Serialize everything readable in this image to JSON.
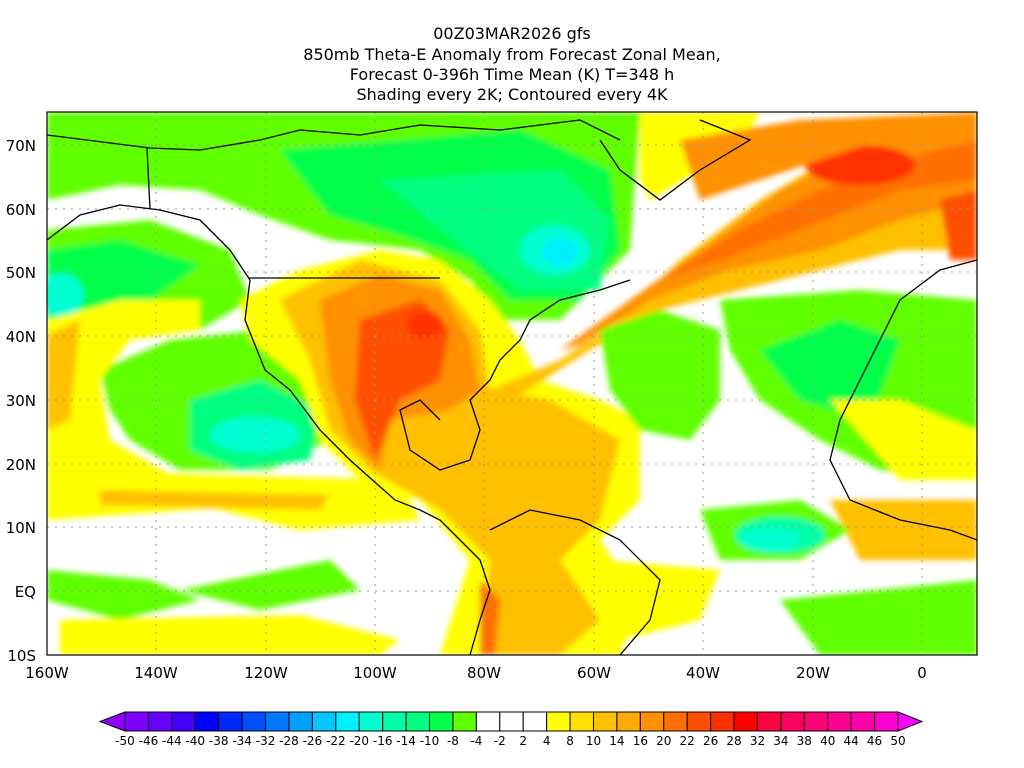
{
  "title": {
    "line1": "00Z03MAR2026 gfs",
    "line2": "850mb Theta-E Anomaly from Forecast Zonal Mean,",
    "line3": "Forecast 0-396h Time Mean (K) T=348 h",
    "line4": "Shading every 2K; Contoured every 4K"
  },
  "map": {
    "lon_labels": [
      "160W",
      "140W",
      "120W",
      "100W",
      "80W",
      "60W",
      "40W",
      "20W",
      "0"
    ],
    "lat_labels": [
      "70N",
      "60N",
      "50N",
      "40N",
      "30N",
      "20N",
      "10N",
      "EQ",
      "10S"
    ]
  },
  "colorbar": {
    "labels": [
      "-50",
      "-46",
      "-44",
      "-40",
      "-38",
      "-34",
      "-32",
      "-28",
      "-26",
      "-22",
      "-20",
      "-16",
      "-14",
      "-10",
      "-8",
      "-4",
      "-2",
      "2",
      "4",
      "8",
      "10",
      "14",
      "16",
      "20",
      "22",
      "26",
      "28",
      "32",
      "34",
      "38",
      "40",
      "44",
      "46",
      "50"
    ],
    "low_triangle_color": "#9000ff",
    "high_triangle_color": "#ff00ff",
    "colors": [
      "#8000ff",
      "#6600ff",
      "#4400ff",
      "#0000ff",
      "#0028ff",
      "#0050ff",
      "#0078ff",
      "#00a0ff",
      "#00c8ff",
      "#00f0ff",
      "#00ffd0",
      "#00ffa8",
      "#00ff80",
      "#00ff48",
      "#60ff00",
      "#ffffff",
      "#ffffff",
      "#ffffff",
      "#ffff00",
      "#ffe000",
      "#ffc000",
      "#ffaa00",
      "#ff9000",
      "#ff7000",
      "#ff5000",
      "#ff3000",
      "#ff0000",
      "#ff0040",
      "#ff0060",
      "#ff0078",
      "#ff0090",
      "#ff00a8",
      "#ff00d0"
    ]
  }
}
